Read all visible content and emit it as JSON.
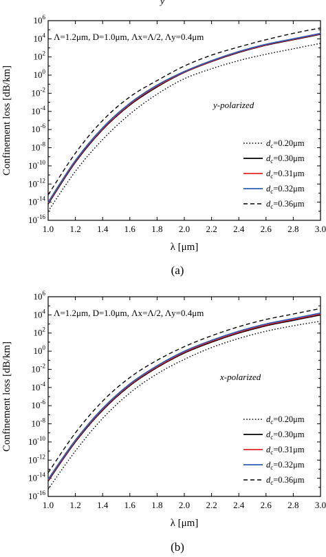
{
  "top_fragment": "y",
  "chart_data": [
    {
      "type": "line",
      "caption": "(a)",
      "annotation": "Λ=1.2μm, D=1.0μm, Λx=Λ/2, Λy=0.4μm",
      "polarization_label": "y-polarized",
      "xlabel": "λ [μm]",
      "ylabel": "Confinement loss [dB/km]",
      "xlim": [
        1.0,
        3.0
      ],
      "ylim_log10": [
        -16,
        6
      ],
      "yscale": "log",
      "legend_position": "lower-right",
      "x_ticks": [
        "1.0",
        "1.2",
        "1.4",
        "1.6",
        "1.8",
        "2.0",
        "2.2",
        "2.4",
        "2.6",
        "2.8",
        "3.0"
      ],
      "x": [
        1.0,
        1.2,
        1.4,
        1.6,
        1.8,
        2.0,
        2.2,
        2.4,
        2.6,
        2.8,
        3.0
      ],
      "series": [
        {
          "name": "dc=0.20μm",
          "color": "#000000",
          "dash": "dotted",
          "log10_values": [
            -15.0,
            -10.6,
            -7.1,
            -4.3,
            -2.1,
            -0.4,
            0.7,
            1.6,
            2.3,
            2.9,
            3.5
          ]
        },
        {
          "name": "dc=0.30μm",
          "color": "#000000",
          "dash": "solid",
          "log10_values": [
            -14.2,
            -9.6,
            -6.0,
            -3.3,
            -1.3,
            0.3,
            1.5,
            2.5,
            3.3,
            3.9,
            4.5
          ]
        },
        {
          "name": "dc=0.31μm",
          "color": "#e8232a",
          "dash": "solid",
          "log10_values": [
            -14.1,
            -9.5,
            -5.9,
            -3.2,
            -1.2,
            0.35,
            1.55,
            2.55,
            3.35,
            3.95,
            4.55
          ]
        },
        {
          "name": "dc=0.32μm",
          "color": "#2f5bb5",
          "dash": "solid",
          "log10_values": [
            -14.0,
            -9.4,
            -5.8,
            -3.1,
            -1.1,
            0.4,
            1.6,
            2.6,
            3.4,
            4.0,
            4.6
          ]
        },
        {
          "name": "dc=0.36μm",
          "color": "#000000",
          "dash": "dashed",
          "log10_values": [
            -13.2,
            -8.6,
            -5.0,
            -2.4,
            -0.6,
            1.0,
            2.2,
            3.1,
            3.9,
            4.6,
            5.2
          ]
        }
      ]
    },
    {
      "type": "line",
      "caption": "(b)",
      "annotation": "Λ=1.2μm, D=1.0μm, Λx=Λ/2, Λy=0.4μm",
      "polarization_label": "x-polarized",
      "xlabel": "λ [μm]",
      "ylabel": "Confinement loss [dB/km]",
      "xlim": [
        1.0,
        3.0
      ],
      "ylim_log10": [
        -16,
        6
      ],
      "yscale": "log",
      "legend_position": "lower-right",
      "x_ticks": [
        "1.0",
        "1.2",
        "1.4",
        "1.6",
        "1.8",
        "2.0",
        "2.2",
        "2.4",
        "2.6",
        "2.8",
        "3.0"
      ],
      "x": [
        1.0,
        1.2,
        1.4,
        1.6,
        1.8,
        2.0,
        2.2,
        2.4,
        2.6,
        2.8,
        3.0
      ],
      "series": [
        {
          "name": "dc=0.20μm",
          "color": "#000000",
          "dash": "dotted",
          "log10_values": [
            -15.2,
            -11.0,
            -7.4,
            -4.6,
            -2.5,
            -0.9,
            0.4,
            1.4,
            2.2,
            2.8,
            3.3
          ]
        },
        {
          "name": "dc=0.30μm",
          "color": "#000000",
          "dash": "solid",
          "log10_values": [
            -14.3,
            -10.0,
            -6.5,
            -3.8,
            -1.8,
            -0.2,
            1.0,
            2.0,
            2.8,
            3.4,
            4.0
          ]
        },
        {
          "name": "dc=0.31μm",
          "color": "#e8232a",
          "dash": "solid",
          "log10_values": [
            -14.2,
            -9.9,
            -6.4,
            -3.7,
            -1.7,
            -0.1,
            1.1,
            2.1,
            2.9,
            3.5,
            4.1
          ]
        },
        {
          "name": "dc=0.32μm",
          "color": "#2f5bb5",
          "dash": "solid",
          "log10_values": [
            -14.1,
            -9.8,
            -6.3,
            -3.6,
            -1.6,
            0.0,
            1.2,
            2.2,
            3.0,
            3.6,
            4.2
          ]
        },
        {
          "name": "dc=0.36μm",
          "color": "#000000",
          "dash": "dashed",
          "log10_values": [
            -13.4,
            -9.0,
            -5.5,
            -2.9,
            -1.0,
            0.5,
            1.7,
            2.7,
            3.5,
            4.1,
            4.7
          ]
        }
      ]
    }
  ]
}
